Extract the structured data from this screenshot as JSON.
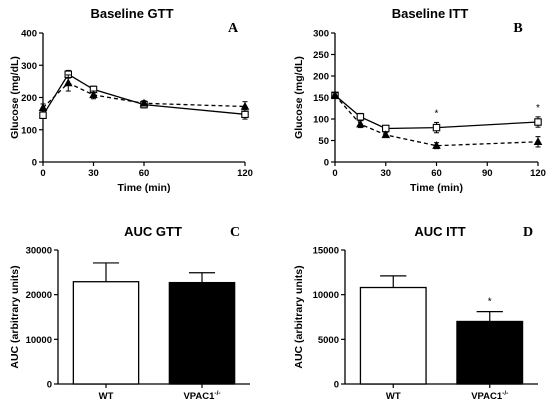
{
  "chart_data": [
    {
      "panel": "A",
      "type": "line",
      "title": "Baseline GTT",
      "xlabel": "Time (min)",
      "ylabel": "Glucose (mg/dL)",
      "xlim": [
        0,
        120
      ],
      "ylim": [
        0,
        400
      ],
      "xticks": [
        0,
        30,
        60,
        120
      ],
      "yticks": [
        0,
        100,
        200,
        300,
        400
      ],
      "grid": false,
      "x": [
        0,
        15,
        30,
        60,
        120
      ],
      "series": [
        {
          "marker": "open-square",
          "line": "solid",
          "values": [
            145,
            272,
            225,
            178,
            148
          ],
          "errors": [
            10,
            12,
            10,
            10,
            15
          ]
        },
        {
          "marker": "filled-triangle",
          "line": "dashed",
          "values": [
            168,
            245,
            208,
            182,
            172
          ],
          "errors": [
            12,
            25,
            12,
            8,
            15
          ]
        }
      ]
    },
    {
      "panel": "B",
      "type": "line",
      "title": "Baseline ITT",
      "xlabel": "Time (min)",
      "ylabel": "Glucose (mg/dL)",
      "xlim": [
        0,
        120
      ],
      "ylim": [
        0,
        300
      ],
      "xticks": [
        0,
        30,
        60,
        90,
        120
      ],
      "yticks": [
        0,
        50,
        100,
        150,
        200,
        250,
        300
      ],
      "grid": false,
      "x": [
        0,
        15,
        30,
        60,
        120
      ],
      "series": [
        {
          "marker": "open-square",
          "line": "solid",
          "values": [
            155,
            105,
            78,
            80,
            93
          ],
          "errors": [
            6,
            8,
            7,
            12,
            12
          ]
        },
        {
          "marker": "filled-triangle",
          "line": "dashed",
          "values": [
            155,
            88,
            63,
            38,
            47
          ],
          "errors": [
            6,
            8,
            6,
            7,
            12
          ]
        }
      ],
      "annotations": [
        {
          "x": 60,
          "text": "*"
        },
        {
          "x": 120,
          "text": "*"
        }
      ]
    },
    {
      "panel": "C",
      "type": "bar",
      "title": "AUC GTT",
      "ylabel": "AUC (arbitrary units)",
      "ylim": [
        0,
        30000
      ],
      "yticks": [
        0,
        10000,
        20000,
        30000
      ],
      "categories": [
        "WT",
        "VPAC1"
      ],
      "category_superscripts": [
        "",
        "-/-"
      ],
      "values": [
        22900,
        22700
      ],
      "errors": [
        4200,
        2200
      ],
      "fills": [
        "#ffffff",
        "#000000"
      ]
    },
    {
      "panel": "D",
      "type": "bar",
      "title": "AUC ITT",
      "ylabel": "AUC (arbitrary units)",
      "ylim": [
        0,
        15000
      ],
      "yticks": [
        0,
        5000,
        10000,
        15000
      ],
      "categories": [
        "WT",
        "VPAC1"
      ],
      "category_superscripts": [
        "",
        "-/-"
      ],
      "values": [
        10800,
        7000
      ],
      "errors": [
        1300,
        1100
      ],
      "fills": [
        "#ffffff",
        "#000000"
      ],
      "annotations": [
        {
          "category": 1,
          "text": "*"
        }
      ]
    }
  ]
}
